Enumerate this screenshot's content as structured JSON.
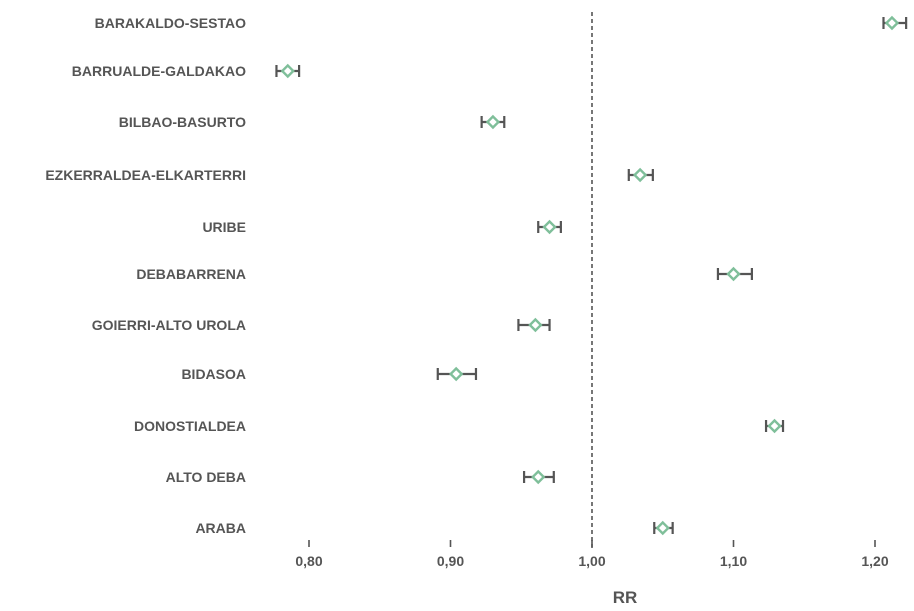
{
  "chart_data": {
    "type": "scatter",
    "subtype": "forest-plot",
    "title": "",
    "xlabel": "RR",
    "ylabel": "",
    "xlim": [
      0.78,
      1.23
    ],
    "xticks": [
      0.8,
      0.9,
      1.0,
      1.1,
      1.2
    ],
    "xtick_labels": [
      "0,80",
      "0,90",
      "1,00",
      "1,10",
      "1,20"
    ],
    "reference_line": 1.0,
    "grid": false,
    "legend": "none",
    "categories": [
      "BARAKALDO-SESTAO",
      "BARRUALDE-GALDAKAO",
      "BILBAO-BASURTO",
      "EZKERRALDEA-ELKARTERRI",
      "URIBE",
      "DEBABARRENA",
      "GOIERRI-ALTO UROLA",
      "BIDASOA",
      "DONOSTIALDEA",
      "ALTO DEBA",
      "ARABA"
    ],
    "estimates": [
      1.212,
      0.785,
      0.93,
      1.034,
      0.97,
      1.1,
      0.96,
      0.904,
      1.129,
      0.962,
      1.05
    ],
    "ci_lower": [
      1.206,
      0.777,
      0.922,
      1.026,
      0.962,
      1.089,
      0.948,
      0.891,
      1.123,
      0.952,
      1.044
    ],
    "ci_upper": [
      1.222,
      0.793,
      0.938,
      1.043,
      0.978,
      1.113,
      0.97,
      0.918,
      1.135,
      0.973,
      1.057
    ],
    "colors": {
      "marker_stroke": "#7fbf9a",
      "marker_fill": "#ffffff",
      "error_bar": "#555555",
      "reference_line": "#555555",
      "text": "#555555"
    }
  }
}
